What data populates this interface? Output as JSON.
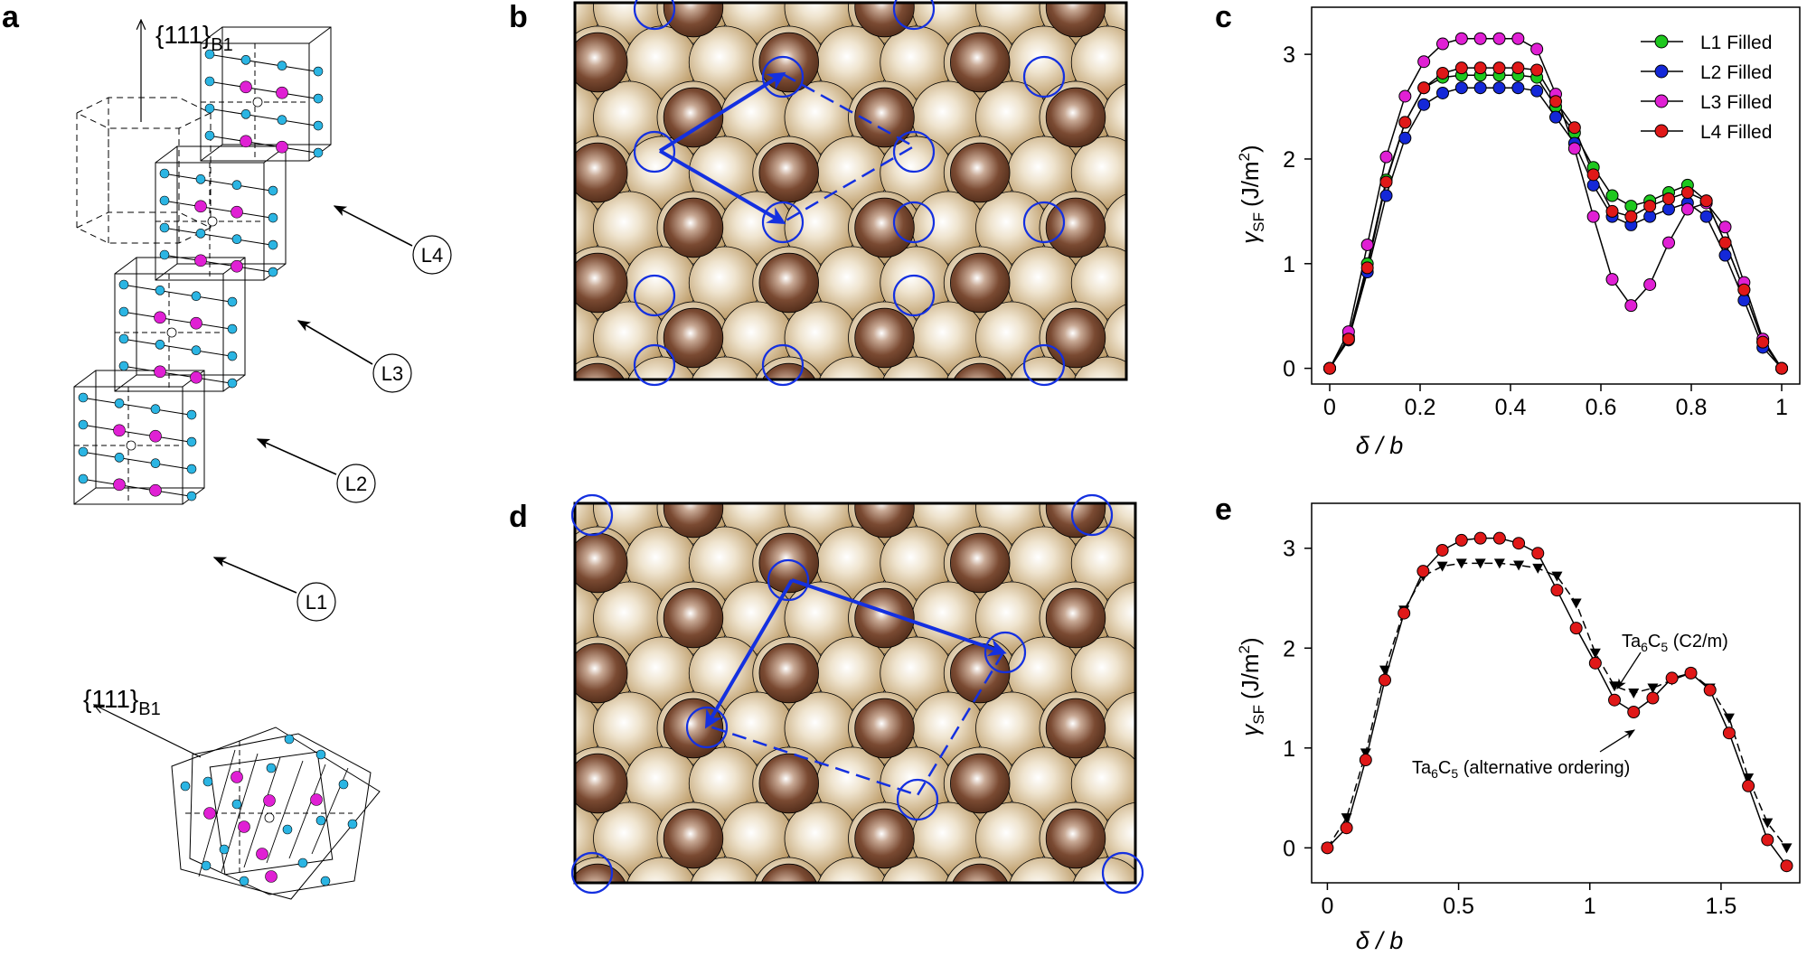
{
  "panels": {
    "a": {
      "letter": "a",
      "top_label": "{111}",
      "top_label_sub": "B1",
      "bottom_label": "{111}",
      "bottom_label_sub": "B1",
      "layers": [
        "L1",
        "L2",
        "L3",
        "L4"
      ],
      "colors": {
        "metal": "#2bb5e3",
        "carbon": "#e020d4",
        "vacancy": "#ffffff"
      }
    },
    "b": {
      "letter": "b"
    },
    "d": {
      "letter": "d"
    },
    "c": {
      "letter": "c"
    },
    "e": {
      "letter": "e"
    }
  },
  "colors": {
    "dark_atom": "#7a4a32",
    "light_atom": "#c9ab7b",
    "frame": "#000000",
    "lattice_vector": "#1430e0"
  },
  "chart_data": [
    {
      "id": "c",
      "type": "line",
      "xlabel": "δ / b",
      "ylabel": "γ",
      "ylabel_sub": "SF",
      "ylabel_unit": "(J/m",
      "ylabel_unit_sup": "2",
      "ylabel_unit_close": ")",
      "xlim": [
        -0.04,
        1.04
      ],
      "ylim": [
        -0.15,
        3.45
      ],
      "xticks": [
        0,
        0.2,
        0.4,
        0.6,
        0.8,
        1
      ],
      "xtick_labels": [
        "0",
        "0.2",
        "0.4",
        "0.6",
        "0.8",
        "1"
      ],
      "yticks": [
        0,
        1,
        2,
        3
      ],
      "ytick_labels": [
        "0",
        "1",
        "2",
        "3"
      ],
      "legend_position": "top-right",
      "x": [
        0,
        0.0417,
        0.0833,
        0.125,
        0.1667,
        0.2083,
        0.25,
        0.2917,
        0.3333,
        0.375,
        0.4167,
        0.4583,
        0.5,
        0.5417,
        0.5833,
        0.625,
        0.6667,
        0.7083,
        0.75,
        0.7917,
        0.8333,
        0.875,
        0.9167,
        0.9583,
        1
      ],
      "series": [
        {
          "name": "L1 Filled",
          "color": "#1ec81e",
          "values": [
            0,
            0.3,
            1.0,
            1.8,
            2.35,
            2.68,
            2.78,
            2.8,
            2.8,
            2.8,
            2.8,
            2.78,
            2.5,
            2.25,
            1.92,
            1.65,
            1.55,
            1.6,
            1.68,
            1.75,
            1.6,
            1.2,
            0.75,
            0.25,
            0
          ]
        },
        {
          "name": "L2 Filled",
          "color": "#1428d8",
          "values": [
            0,
            0.27,
            0.92,
            1.65,
            2.2,
            2.52,
            2.63,
            2.68,
            2.68,
            2.68,
            2.68,
            2.65,
            2.4,
            2.15,
            1.75,
            1.45,
            1.37,
            1.45,
            1.52,
            1.58,
            1.45,
            1.08,
            0.65,
            0.2,
            0
          ]
        },
        {
          "name": "L3 Filled",
          "color": "#e020d4",
          "values": [
            0,
            0.35,
            1.18,
            2.02,
            2.6,
            2.93,
            3.1,
            3.15,
            3.15,
            3.15,
            3.15,
            3.05,
            2.62,
            2.1,
            1.45,
            0.85,
            0.6,
            0.8,
            1.2,
            1.52,
            1.58,
            1.35,
            0.82,
            0.28,
            0
          ]
        },
        {
          "name": "L4 Filled",
          "color": "#e01818",
          "values": [
            0,
            0.28,
            0.96,
            1.78,
            2.35,
            2.68,
            2.82,
            2.87,
            2.87,
            2.87,
            2.87,
            2.85,
            2.55,
            2.3,
            1.85,
            1.5,
            1.45,
            1.55,
            1.62,
            1.68,
            1.6,
            1.2,
            0.75,
            0.25,
            0
          ]
        }
      ]
    },
    {
      "id": "e",
      "type": "line",
      "xlabel": "δ / b",
      "ylabel": "γ",
      "ylabel_sub": "SF",
      "ylabel_unit": "(J/m",
      "ylabel_unit_sup": "2",
      "ylabel_unit_close": ")",
      "xlim": [
        -0.06,
        1.8
      ],
      "ylim": [
        -0.35,
        3.45
      ],
      "xticks": [
        0,
        0.5,
        1,
        1.5
      ],
      "xtick_labels": [
        "0",
        "0.5",
        "1",
        "1.5"
      ],
      "yticks": [
        0,
        1,
        2,
        3
      ],
      "ytick_labels": [
        "0",
        "1",
        "2",
        "3"
      ],
      "series": [
        {
          "name": "Ta6C5 (C2/m)",
          "color": "#000000",
          "marker": "triangle-down",
          "line": "dashed",
          "x": [
            0,
            0.073,
            0.146,
            0.219,
            0.292,
            0.365,
            0.438,
            0.511,
            0.583,
            0.656,
            0.729,
            0.802,
            0.875,
            0.948,
            1.021,
            1.094,
            1.167,
            1.24,
            1.313,
            1.385,
            1.458,
            1.531,
            1.604,
            1.677,
            1.75
          ],
          "values": [
            0,
            0.3,
            0.95,
            1.78,
            2.38,
            2.72,
            2.82,
            2.85,
            2.85,
            2.85,
            2.83,
            2.8,
            2.72,
            2.45,
            1.95,
            1.62,
            1.55,
            1.6,
            1.68,
            1.75,
            1.6,
            1.3,
            0.7,
            0.25,
            0
          ]
        },
        {
          "name": "Ta6C5 (alternative ordering)",
          "color": "#e01818",
          "marker": "circle",
          "line": "solid",
          "x": [
            0,
            0.073,
            0.146,
            0.219,
            0.292,
            0.365,
            0.438,
            0.511,
            0.583,
            0.656,
            0.729,
            0.802,
            0.875,
            0.948,
            1.021,
            1.094,
            1.167,
            1.24,
            1.313,
            1.385,
            1.458,
            1.531,
            1.604,
            1.677,
            1.75
          ],
          "values": [
            0,
            0.2,
            0.88,
            1.68,
            2.35,
            2.77,
            2.98,
            3.08,
            3.1,
            3.1,
            3.05,
            2.95,
            2.58,
            2.2,
            1.85,
            1.48,
            1.36,
            1.5,
            1.7,
            1.75,
            1.58,
            1.15,
            0.62,
            0.08,
            -0.18
          ]
        }
      ],
      "annotations": [
        {
          "base": "Ta",
          "sub1": "6",
          "mid": "C",
          "sub2": "5",
          "rest": " (C2/m)"
        },
        {
          "base": "Ta",
          "sub1": "6",
          "mid": "C",
          "sub2": "5",
          "rest": " (alternative ordering)"
        }
      ]
    }
  ]
}
